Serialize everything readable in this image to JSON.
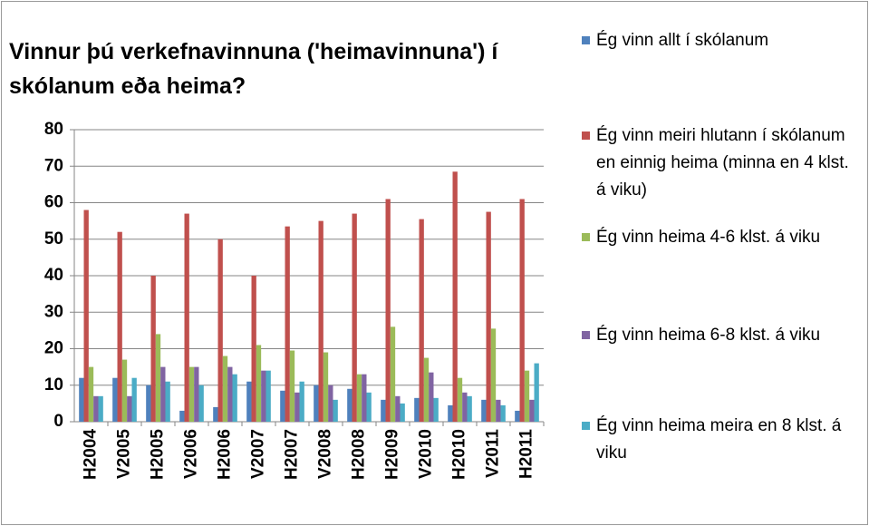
{
  "chart_data": {
    "type": "bar",
    "title": "Vinnur þú verkefnavinnuna ('heimavinnuna') í skólanum eða heima?",
    "categories": [
      "H2004",
      "V2005",
      "H2005",
      "V2006",
      "H2006",
      "V2007",
      "H2007",
      "V2008",
      "H2008",
      "H2009",
      "V2010",
      "H2010",
      "V2011",
      "H2011"
    ],
    "series": [
      {
        "name": "Ég vinn allt í skólanum",
        "color": "#4f81bd",
        "values": [
          12,
          12,
          10,
          3,
          4,
          11,
          8.5,
          10,
          9,
          6,
          6.5,
          4.5,
          6,
          3
        ]
      },
      {
        "name": "Ég vinn meiri hlutann í skólanum en einnig heima (minna en 4 klst. á viku)",
        "color": "#c0504d",
        "values": [
          58,
          52,
          40,
          57,
          50,
          40,
          53.5,
          55,
          57,
          61,
          55.5,
          68.5,
          57.5,
          61
        ]
      },
      {
        "name": "Ég vinn heima 4-6 klst. á viku",
        "color": "#9bbb59",
        "values": [
          15,
          17,
          24,
          15,
          18,
          21,
          19.5,
          19,
          13,
          26,
          17.5,
          12,
          25.5,
          14
        ]
      },
      {
        "name": "Ég vinn heima 6-8 klst. á viku",
        "color": "#8064a2",
        "values": [
          7,
          7,
          15,
          15,
          15,
          14,
          8,
          10,
          13,
          7,
          13.5,
          8,
          6,
          6
        ]
      },
      {
        "name": "Ég vinn heima meira en 8 klst. á viku",
        "color": "#4bacc6",
        "values": [
          7,
          12,
          11,
          10,
          13,
          14,
          11,
          6,
          8,
          5,
          6.5,
          7,
          4.5,
          16
        ]
      }
    ],
    "ylim": [
      0,
      80
    ],
    "yticks": [
      0,
      10,
      20,
      30,
      40,
      50,
      60,
      70,
      80
    ],
    "grid": true,
    "legend": "right"
  }
}
